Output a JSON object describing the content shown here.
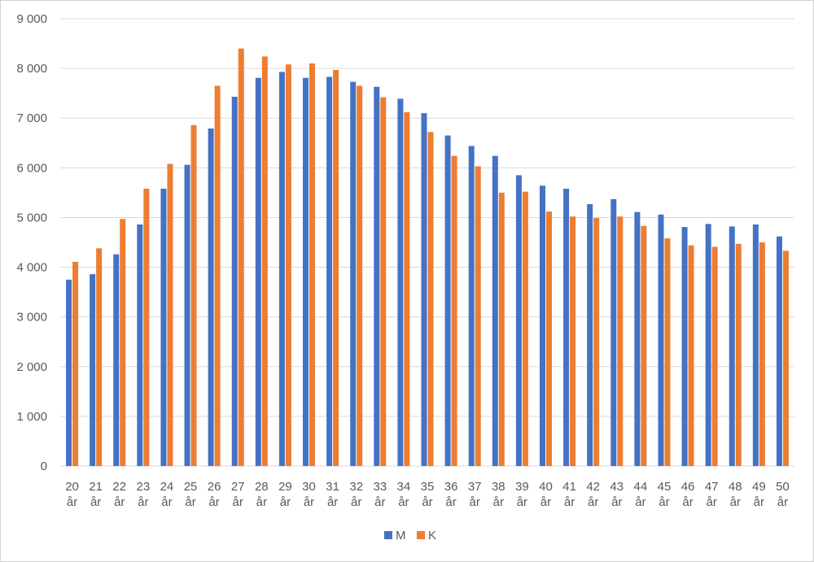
{
  "chart_data": {
    "type": "bar",
    "categories": [
      "20 år",
      "21 år",
      "22 år",
      "23 år",
      "24 år",
      "25 år",
      "26 år",
      "27 år",
      "28 år",
      "29 år",
      "30 år",
      "31 år",
      "32 år",
      "33 år",
      "34 år",
      "35 år",
      "36 år",
      "37 år",
      "38 år",
      "39 år",
      "40 år",
      "41 år",
      "42 år",
      "43 år",
      "44 år",
      "45 år",
      "46 år",
      "47 år",
      "48 år",
      "49 år",
      "50 år"
    ],
    "series": [
      {
        "name": "M",
        "color": "#4472c4",
        "values": [
          3750,
          3860,
          4260,
          4860,
          5580,
          6060,
          6790,
          7430,
          7810,
          7930,
          7810,
          7830,
          7730,
          7630,
          7390,
          7100,
          6650,
          6440,
          6240,
          5850,
          5640,
          5580,
          5270,
          5370,
          5110,
          5060,
          4810,
          4870,
          4820,
          4860,
          4620
        ]
      },
      {
        "name": "K",
        "color": "#ed7d31",
        "values": [
          4110,
          4380,
          4970,
          5580,
          6080,
          6860,
          7650,
          8400,
          8240,
          8080,
          8100,
          7970,
          7650,
          7420,
          7120,
          6720,
          6240,
          6030,
          5500,
          5520,
          5120,
          5020,
          4990,
          5020,
          4830,
          4580,
          4440,
          4410,
          4470,
          4500,
          4330
        ]
      }
    ],
    "yticks": [
      "0",
      "1 000",
      "2 000",
      "3 000",
      "4 000",
      "5 000",
      "6 000",
      "7 000",
      "8 000",
      "9 000"
    ],
    "ylim": [
      0,
      9000
    ],
    "grid": true,
    "legend": "bottom",
    "title": "",
    "xlabel": "",
    "ylabel": ""
  }
}
